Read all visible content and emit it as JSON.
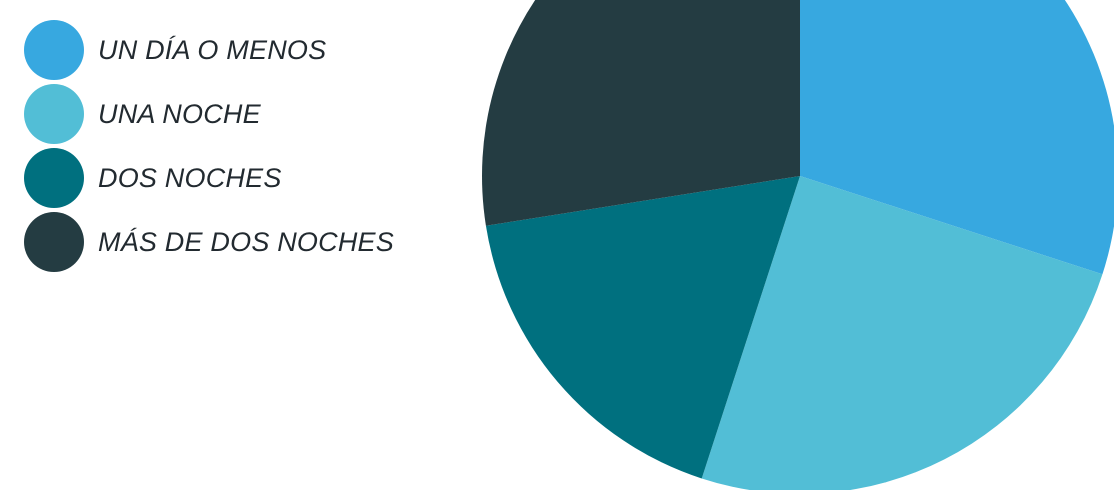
{
  "chart_data": {
    "type": "pie",
    "title": "",
    "series": [
      {
        "name": "UN DÍA O MENOS",
        "value": 30,
        "color": "#37a8e0"
      },
      {
        "name": "UNA NOCHE",
        "value": 25,
        "color": "#52bed6"
      },
      {
        "name": "DOS NOCHES",
        "value": 17.5,
        "color": "#00707f"
      },
      {
        "name": "MÁS DE DOS NOCHES",
        "value": 27.5,
        "color": "#243c42"
      }
    ],
    "legend": "top-left",
    "start_angle": "12 o'clock",
    "direction": "clockwise"
  }
}
